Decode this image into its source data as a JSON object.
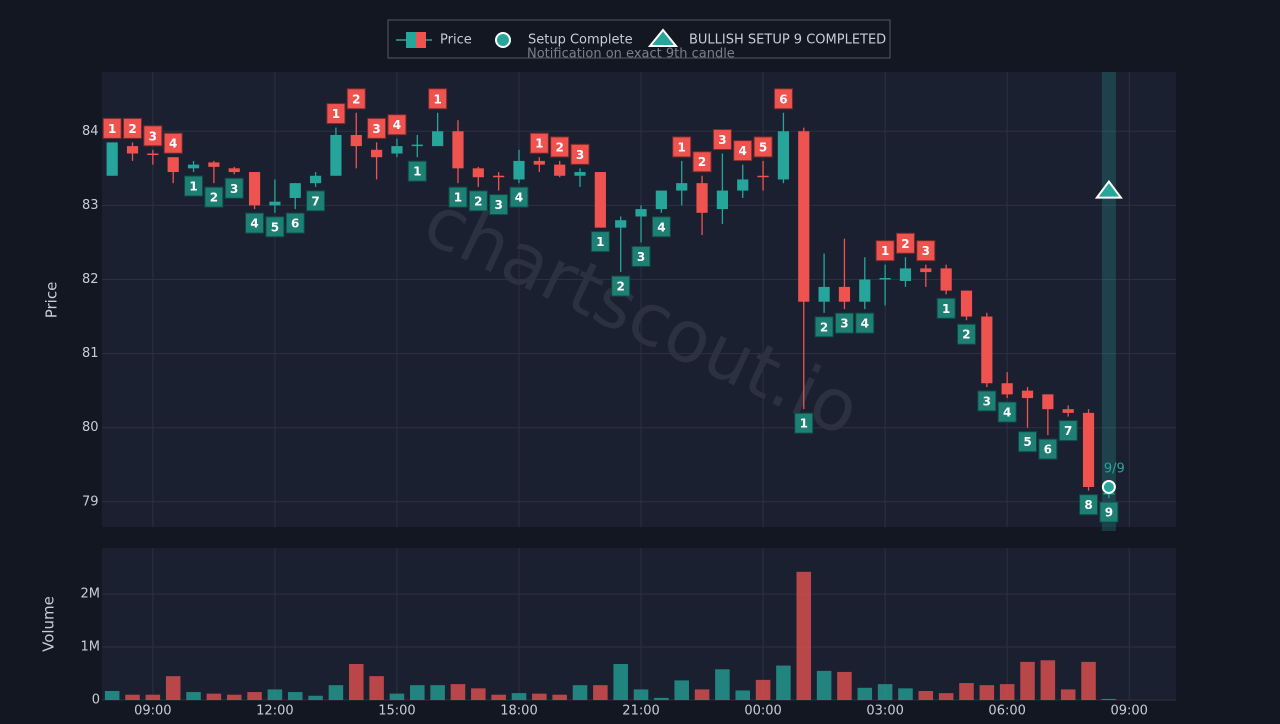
{
  "chart_data": {
    "type": "candlestick",
    "legend": {
      "price": "Price",
      "setup": "Setup Complete",
      "signal": "BULLISH SETUP 9 COMPLETED",
      "note": "Notification on exact 9th candle"
    },
    "watermark": "chartscout.io",
    "y_label": "Price",
    "volume_label": "Volume",
    "up_color": "#26a69a",
    "down_color": "#ef5350",
    "grid": true,
    "x": [
      8,
      8.5,
      9,
      9.5,
      10,
      10.5,
      11,
      11.5,
      12,
      12.5,
      13,
      13.5,
      14,
      14.5,
      15,
      15.5,
      16,
      16.5,
      17,
      17.5,
      18,
      18.5,
      19,
      19.5,
      20,
      20.5,
      21,
      21.5,
      22,
      22.5,
      23,
      23.5,
      24,
      24.5,
      25,
      25.5,
      26,
      26.5,
      27,
      27.5,
      28,
      28.5,
      29,
      29.5,
      30,
      30.5,
      31,
      31.5,
      32,
      32.5
    ],
    "open": [
      83.4,
      83.8,
      83.7,
      83.65,
      83.5,
      83.58,
      83.5,
      83.45,
      83.0,
      83.1,
      83.3,
      83.4,
      83.95,
      83.75,
      83.7,
      83.8,
      83.8,
      84.0,
      83.5,
      83.4,
      83.35,
      83.6,
      83.55,
      83.4,
      83.45,
      82.7,
      82.85,
      82.95,
      83.2,
      83.3,
      82.95,
      83.2,
      83.4,
      83.35,
      84.0,
      81.7,
      81.9,
      81.7,
      82.0,
      81.98,
      82.15,
      82.15,
      81.85,
      81.5,
      80.6,
      80.5,
      80.45,
      80.25,
      80.2,
      79.1
    ],
    "high": [
      83.85,
      83.85,
      83.75,
      83.65,
      83.6,
      83.6,
      83.52,
      83.45,
      83.35,
      83.3,
      83.45,
      84.05,
      84.25,
      83.85,
      83.9,
      83.95,
      84.25,
      84.15,
      83.52,
      83.45,
      83.75,
      83.65,
      83.6,
      83.5,
      83.45,
      82.85,
      83.0,
      83.2,
      83.6,
      83.4,
      83.7,
      83.55,
      83.6,
      84.25,
      84.05,
      82.35,
      82.55,
      82.3,
      82.2,
      82.3,
      82.2,
      82.2,
      81.85,
      81.55,
      80.75,
      80.55,
      80.45,
      80.3,
      80.25,
      79.15
    ],
    "low": [
      83.4,
      83.6,
      83.55,
      83.3,
      83.45,
      83.3,
      83.42,
      82.95,
      82.9,
      82.95,
      83.25,
      83.4,
      83.5,
      83.35,
      83.65,
      83.65,
      83.8,
      83.3,
      83.25,
      83.2,
      83.3,
      83.45,
      83.38,
      83.25,
      82.7,
      82.1,
      82.5,
      82.9,
      83.0,
      82.6,
      82.75,
      83.1,
      83.2,
      83.3,
      80.25,
      81.55,
      81.6,
      81.6,
      81.65,
      81.9,
      81.9,
      81.8,
      81.45,
      80.55,
      80.4,
      80.0,
      79.9,
      80.15,
      79.15,
      79.05
    ],
    "close": [
      83.85,
      83.7,
      83.68,
      83.45,
      83.55,
      83.52,
      83.45,
      83.0,
      83.05,
      83.3,
      83.4,
      83.95,
      83.8,
      83.65,
      83.8,
      83.82,
      84.0,
      83.5,
      83.38,
      83.38,
      83.6,
      83.55,
      83.4,
      83.45,
      82.7,
      82.8,
      82.95,
      83.2,
      83.3,
      82.9,
      83.2,
      83.35,
      83.38,
      84.0,
      81.7,
      81.9,
      81.7,
      82.0,
      82.02,
      82.15,
      82.1,
      81.85,
      81.5,
      80.6,
      80.45,
      80.4,
      80.25,
      80.2,
      79.2,
      79.12
    ],
    "volume": [
      170000,
      100000,
      100000,
      450000,
      150000,
      120000,
      100000,
      150000,
      200000,
      150000,
      80000,
      280000,
      680000,
      450000,
      120000,
      280000,
      280000,
      300000,
      220000,
      100000,
      130000,
      120000,
      100000,
      280000,
      280000,
      680000,
      200000,
      40000,
      370000,
      200000,
      580000,
      180000,
      380000,
      650000,
      2420000,
      550000,
      530000,
      230000,
      300000,
      220000,
      170000,
      130000,
      320000,
      280000,
      300000,
      720000,
      750000,
      200000,
      720000,
      20000
    ],
    "sell_setup": [
      1,
      2,
      3,
      4,
      null,
      null,
      null,
      null,
      null,
      null,
      null,
      1,
      2,
      3,
      4,
      null,
      1,
      null,
      null,
      null,
      null,
      1,
      2,
      3,
      null,
      null,
      null,
      null,
      1,
      2,
      3,
      4,
      5,
      6,
      null,
      null,
      null,
      null,
      1,
      2,
      3,
      null,
      null,
      null,
      null,
      null,
      null,
      null,
      null,
      null
    ],
    "buy_setup": [
      null,
      null,
      null,
      null,
      1,
      2,
      3,
      4,
      5,
      6,
      7,
      null,
      null,
      null,
      null,
      1,
      null,
      1,
      2,
      3,
      4,
      null,
      null,
      null,
      1,
      2,
      3,
      4,
      null,
      null,
      null,
      null,
      null,
      null,
      1,
      2,
      3,
      4,
      null,
      null,
      null,
      1,
      2,
      3,
      4,
      5,
      6,
      7,
      8,
      9
    ],
    "signal_x": 32.5,
    "triangle_y": 83.2,
    "circle_y": 79.2,
    "annotation": "9/9",
    "xlim": [
      7.75,
      34.15
    ],
    "xticks": [
      {
        "value": 9,
        "label": "09:00"
      },
      {
        "value": 12,
        "label": "12:00"
      },
      {
        "value": 15,
        "label": "15:00"
      },
      {
        "value": 18,
        "label": "18:00"
      },
      {
        "value": 21,
        "label": "21:00"
      },
      {
        "value": 24,
        "label": "00:00"
      },
      {
        "value": 27,
        "label": "03:00"
      },
      {
        "value": 30,
        "label": "06:00"
      },
      {
        "value": 33,
        "label": "09:00"
      }
    ],
    "ylim": [
      78.66,
      84.8
    ],
    "yticks": [
      79,
      80,
      81,
      82,
      83,
      84
    ],
    "volume_ylim": [
      0,
      2870000
    ],
    "volume_yticks": [
      0,
      {
        "value": 1000000,
        "label": "1M"
      },
      {
        "value": 2000000,
        "label": "2M"
      }
    ]
  }
}
